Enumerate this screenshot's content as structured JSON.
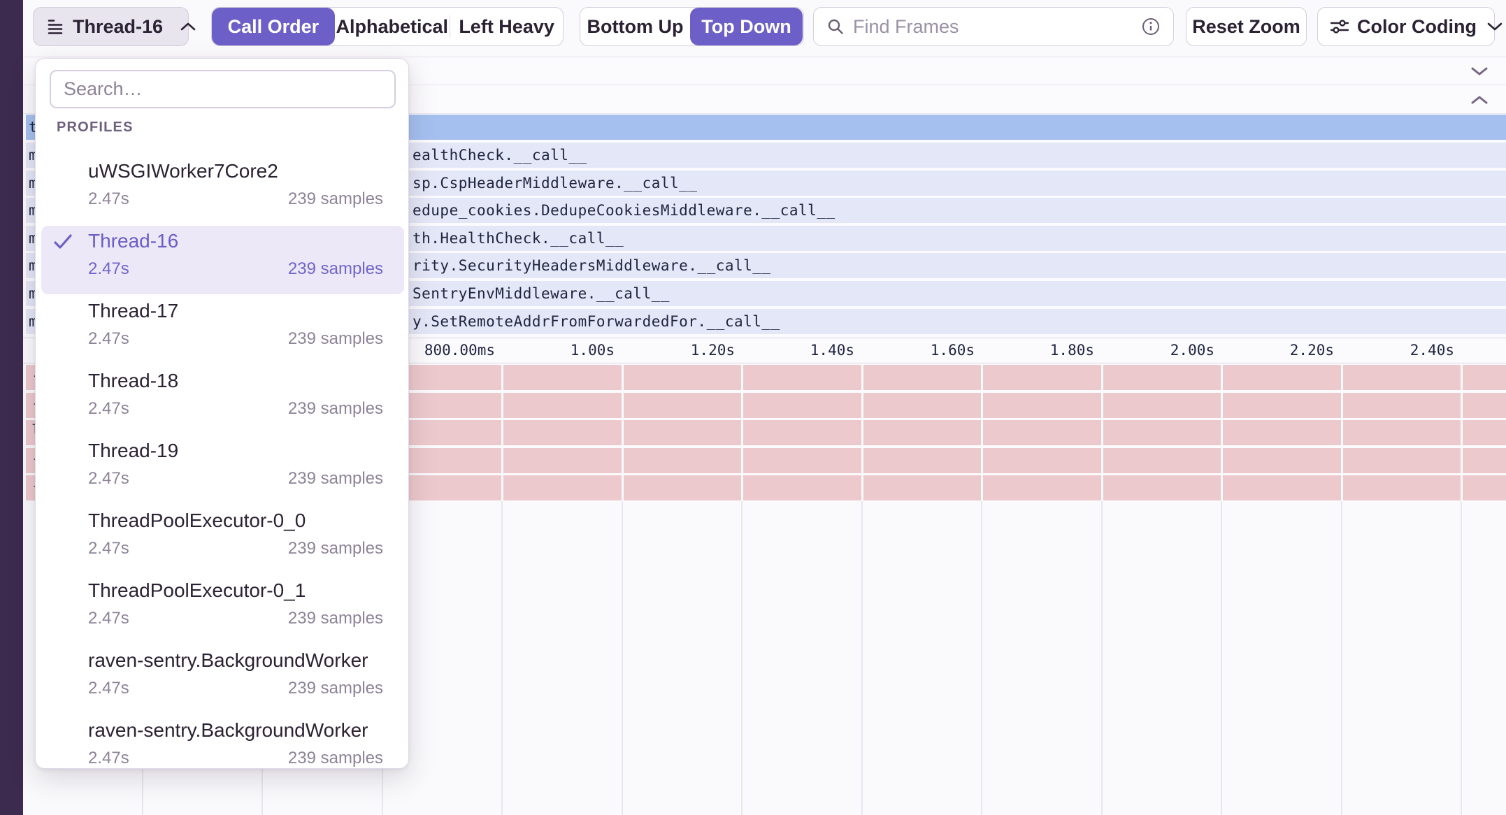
{
  "colors": {
    "accent": "#6C5FC7",
    "topbar_bg": "#FAF9FB",
    "sidebar_bg": "#3D2B4F",
    "border": "#D6CEDE",
    "text_dark": "#2B2233",
    "text_muted": "#8D8398",
    "selected_bg": "#ECE8F8",
    "selected_text": "#6A5DC6",
    "row_blue": "#A5C0EF",
    "row_lavender": "#E4E7F7",
    "row_pink": "#ECC9CD",
    "mono_text": "#20253F"
  },
  "toolbar": {
    "thread_selector": {
      "label": "Thread-16"
    },
    "sort_toggle": {
      "options": [
        "Call Order",
        "Alphabetical",
        "Left Heavy"
      ],
      "selected": "Call Order"
    },
    "direction_toggle": {
      "options": [
        "Bottom Up",
        "Top Down"
      ],
      "selected": "Top Down"
    },
    "find_frames": {
      "placeholder": "Find Frames"
    },
    "reset_zoom_label": "Reset Zoom",
    "color_coding_label": "Color Coding"
  },
  "dropdown": {
    "search_placeholder": "Search…",
    "section_label": "PROFILES",
    "selected_index": 1,
    "items": [
      {
        "name": "uWSGIWorker7Core2",
        "duration": "2.47s",
        "samples": "239 samples"
      },
      {
        "name": "Thread-16",
        "duration": "2.47s",
        "samples": "239 samples"
      },
      {
        "name": "Thread-17",
        "duration": "2.47s",
        "samples": "239 samples"
      },
      {
        "name": "Thread-18",
        "duration": "2.47s",
        "samples": "239 samples"
      },
      {
        "name": "Thread-19",
        "duration": "2.47s",
        "samples": "239 samples"
      },
      {
        "name": "ThreadPoolExecutor-0_0",
        "duration": "2.47s",
        "samples": "239 samples"
      },
      {
        "name": "ThreadPoolExecutor-0_1",
        "duration": "2.47s",
        "samples": "239 samples"
      },
      {
        "name": "raven-sentry.BackgroundWorker",
        "duration": "2.47s",
        "samples": "239 samples"
      },
      {
        "name": "raven-sentry.BackgroundWorker",
        "duration": "2.47s",
        "samples": "239 samples"
      }
    ]
  },
  "flamegraph": {
    "selected_row_edge": "t",
    "frame_rows": [
      {
        "edge": "m",
        "text": "ealthCheck.__call__"
      },
      {
        "edge": "m",
        "text": "sp.CspHeaderMiddleware.__call__"
      },
      {
        "edge": "m",
        "text": "edupe_cookies.DedupeCookiesMiddleware.__call__"
      },
      {
        "edge": "m",
        "text": "th.HealthCheck.__call__"
      },
      {
        "edge": "m",
        "text": "rity.SecurityHeadersMiddleware.__call__"
      },
      {
        "edge": "m",
        "text": "SentryEnvMiddleware.__call__"
      },
      {
        "edge": "m",
        "text": "y.SetRemoteAddrFromForwardedFor.__call__"
      }
    ],
    "axis_ticks": [
      "800.00ms",
      "1.00s",
      "1.20s",
      "1.40s",
      "1.60s",
      "1.80s",
      "2.00s",
      "2.20s",
      "2.40s"
    ],
    "pink_row_edges": [
      "-",
      "-",
      "l",
      "-",
      "-"
    ]
  }
}
